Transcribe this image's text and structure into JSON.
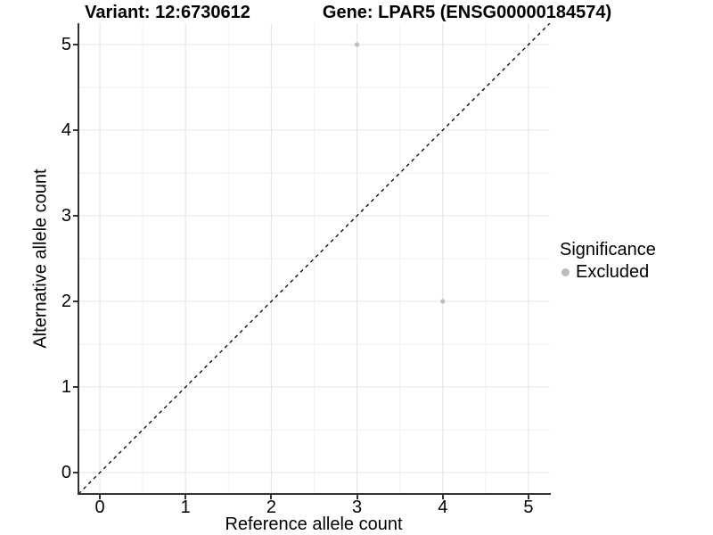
{
  "titles": {
    "variant": "Variant: 12:6730612",
    "gene": "Gene: LPAR5 (ENSG00000184574)"
  },
  "axes": {
    "xlabel": "Reference allele count",
    "ylabel": "Alternative allele count"
  },
  "legend": {
    "title": "Significance",
    "items": [
      {
        "label": "Excluded",
        "color": "#bcbcbc"
      }
    ]
  },
  "colors": {
    "grid_major": "#e4e4e4",
    "grid_minor": "#f2f2f2",
    "axis": "#333333",
    "diagonal": "#000000",
    "point": "#bfbfbf",
    "background": "#ffffff"
  },
  "chart_data": {
    "type": "scatter",
    "title": "Variant: 12:6730612    Gene: LPAR5 (ENSG00000184574)",
    "xlabel": "Reference allele count",
    "ylabel": "Alternative allele count",
    "xlim": [
      -0.25,
      5.25
    ],
    "ylim": [
      -0.25,
      5.25
    ],
    "x_ticks": [
      0,
      1,
      2,
      3,
      4,
      5
    ],
    "y_ticks": [
      0,
      1,
      2,
      3,
      4,
      5
    ],
    "x_minor_ticks": [
      0.5,
      1.5,
      2.5,
      3.5,
      4.5
    ],
    "y_minor_ticks": [
      0.5,
      1.5,
      2.5,
      3.5,
      4.5
    ],
    "grid": "major+minor",
    "legend_position": "right",
    "series": [
      {
        "name": "Excluded",
        "color": "#bfbfbf",
        "marker_radius": 2.7,
        "points": [
          {
            "x": 3,
            "y": 5
          },
          {
            "x": 4,
            "y": 2
          }
        ]
      }
    ],
    "reference_line": {
      "kind": "y=x",
      "from": [
        -0.25,
        -0.25
      ],
      "to": [
        5.25,
        5.25
      ],
      "style": "dashed",
      "color": "#000000"
    }
  }
}
